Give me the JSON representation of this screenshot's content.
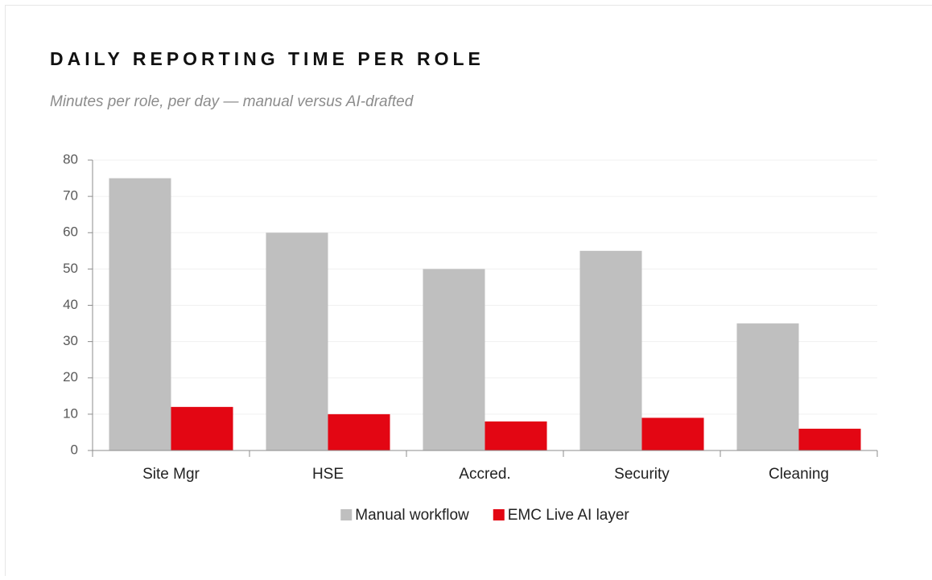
{
  "chart_data": {
    "type": "bar",
    "title": "DAILY REPORTING TIME PER ROLE",
    "subtitle": "Minutes per role, per day — manual versus AI-drafted",
    "categories": [
      "Site Mgr",
      "HSE",
      "Accred.",
      "Security",
      "Cleaning"
    ],
    "series": [
      {
        "name": "Manual workflow",
        "color": "#bfbfbf",
        "values": [
          75,
          60,
          50,
          55,
          35
        ]
      },
      {
        "name": "EMC Live AI layer",
        "color": "#e30613",
        "values": [
          12,
          10,
          8,
          9,
          6
        ]
      }
    ],
    "ylim": [
      0,
      80
    ],
    "yticks": [
      0,
      10,
      20,
      30,
      40,
      50,
      60,
      70,
      80
    ],
    "grid": true,
    "legend": "bottom"
  }
}
